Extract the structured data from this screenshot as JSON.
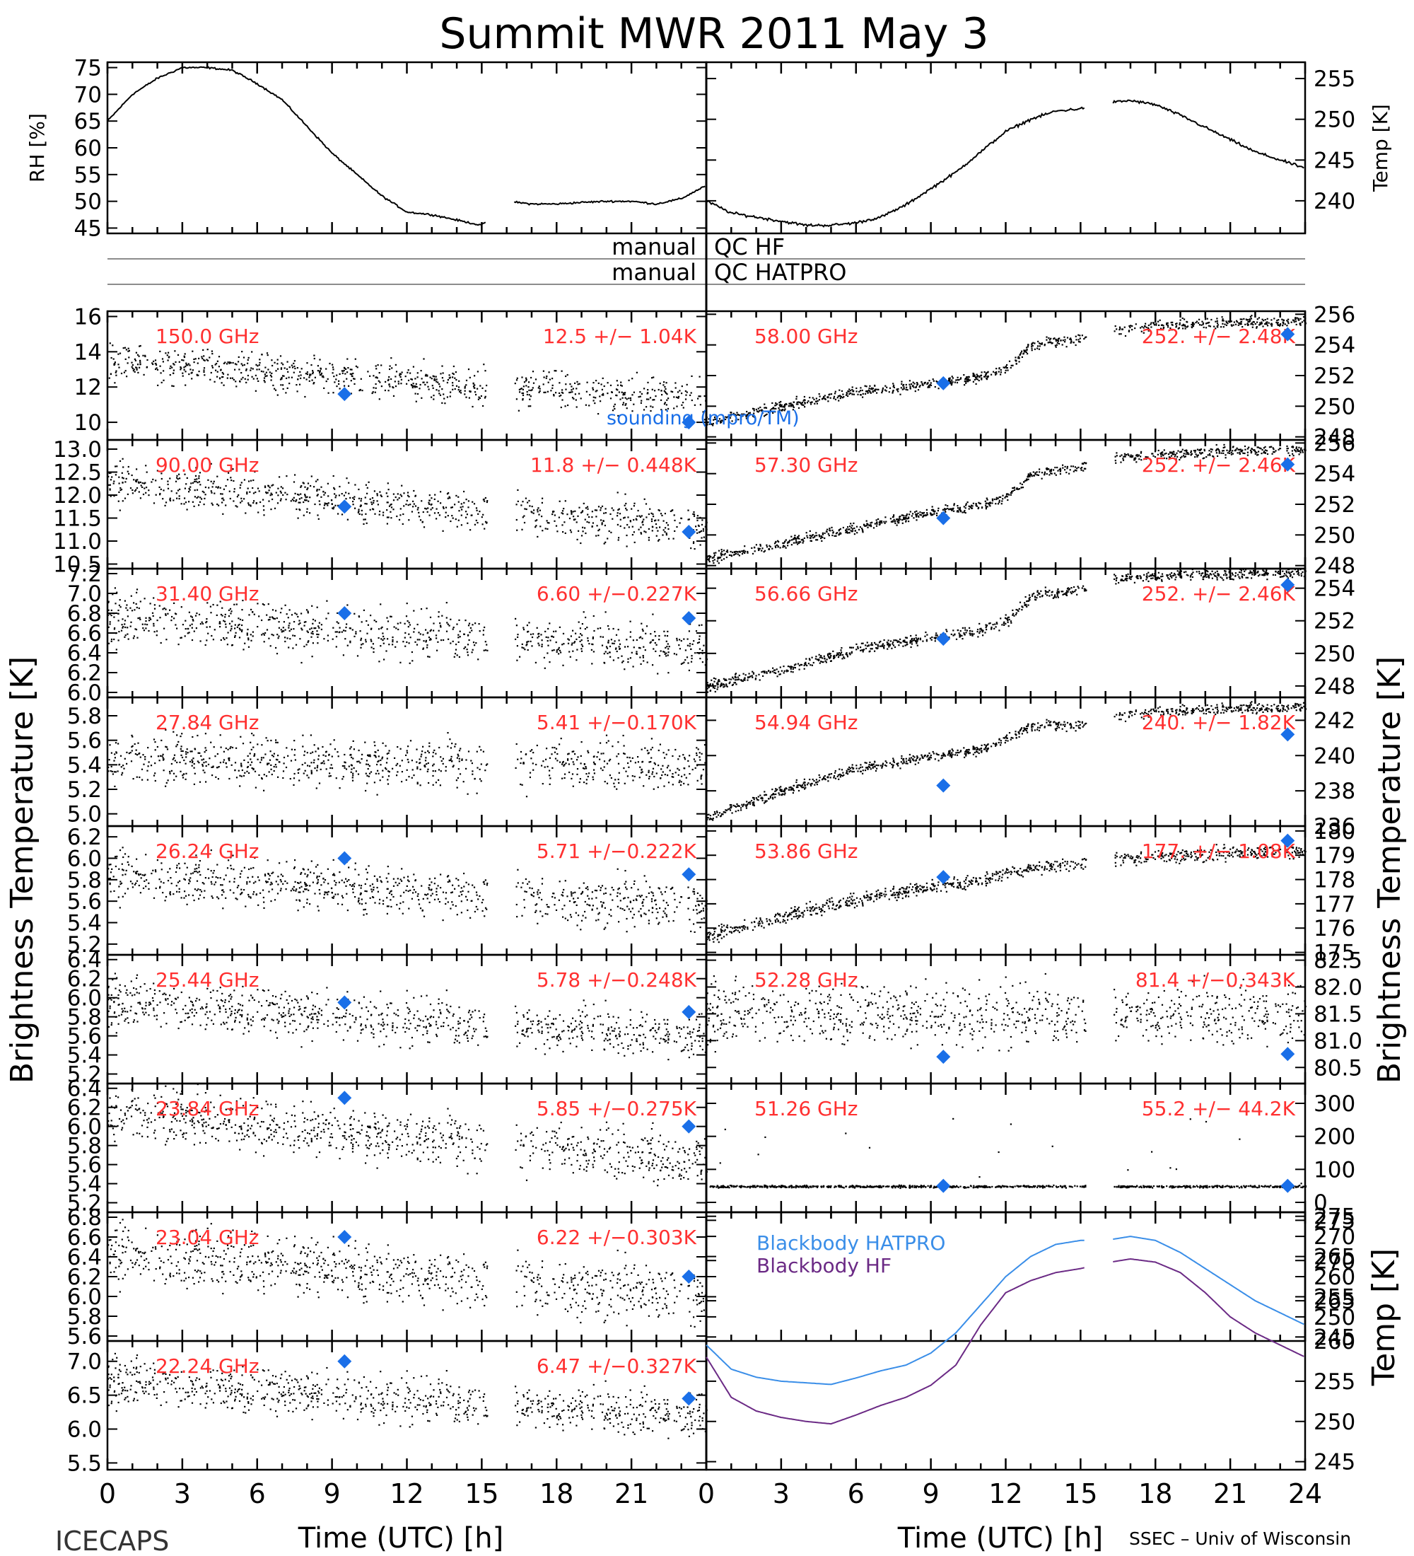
{
  "title": "Summit MWR 2011 May  3",
  "footer_left": "ICECAPS",
  "footer_right": "SSEC – Univ of Wisconsin",
  "x_axis_label": "Time (UTC) [h]",
  "left_ylabel": "Brightness Temperature [K]",
  "right_ylabel": "Brightness Temperature [K]",
  "colors": {
    "series": "#000000",
    "stat_text": "#ff3030",
    "sounding": "#1a6fe8",
    "bb_hatpro": "#3a8ee8",
    "bb_hf": "#6b2a85"
  },
  "qc_bars": [
    {
      "left": "manual",
      "right": "QC HF"
    },
    {
      "left": "manual",
      "right": "QC HATPRO"
    }
  ],
  "sounding_label": "sounding (mpro/TM)",
  "chart_data": [
    {
      "type": "line",
      "id": "rh",
      "ylabel": "RH [%]",
      "xlim": [
        0,
        24
      ],
      "ylim": [
        44,
        76
      ],
      "yticks": [
        45,
        50,
        55,
        60,
        65,
        70,
        75
      ],
      "gap": [
        15.2,
        16.3
      ],
      "x": [
        0,
        1,
        2,
        3,
        4,
        5,
        6,
        7,
        8,
        9,
        10,
        11,
        12,
        13,
        14,
        15,
        16,
        17,
        18,
        19,
        20,
        21,
        22,
        23,
        24
      ],
      "y": [
        65,
        70,
        73,
        75,
        75,
        74.5,
        72,
        69,
        64,
        59,
        55,
        51,
        48,
        47.5,
        46.5,
        45.5,
        50,
        49.5,
        49.5,
        49.8,
        50,
        50,
        49.5,
        50.5,
        53
      ]
    },
    {
      "type": "line",
      "id": "temp",
      "ylabel": "Temp [K]",
      "xlim": [
        0,
        24
      ],
      "ylim": [
        236,
        257
      ],
      "yticks": [
        240,
        245,
        250,
        255
      ],
      "gap": [
        15.2,
        16.3
      ],
      "x": [
        0,
        1,
        2,
        3,
        4,
        5,
        6,
        7,
        8,
        9,
        10,
        11,
        12,
        13,
        14,
        15,
        16,
        17,
        18,
        19,
        20,
        21,
        22,
        23,
        24
      ],
      "y": [
        240,
        238.5,
        238,
        237.5,
        237,
        237,
        237.3,
        238,
        239.5,
        241.5,
        243.5,
        246,
        248.5,
        250,
        251,
        251.3,
        252,
        252.3,
        251.8,
        250.5,
        249,
        247.5,
        246,
        245,
        244
      ]
    },
    {
      "type": "scatter",
      "id": "c150",
      "side": "left",
      "label": "150.0 GHz",
      "stat": "12.5 +/−  1.04K",
      "ylim": [
        9,
        16.3
      ],
      "yticks": [
        10,
        12,
        14,
        16
      ],
      "mean": [
        13.4,
        11.4
      ],
      "noise": 0.9,
      "sound_x": [
        9.5,
        23.3
      ],
      "sound_y": [
        11.6,
        10.0
      ]
    },
    {
      "type": "scatter",
      "id": "c90",
      "side": "left",
      "label": "90.00 GHz",
      "stat": "11.8 +/− 0.448K",
      "ylim": [
        10.4,
        13.2
      ],
      "yticks": [
        10.5,
        11.0,
        11.5,
        12.0,
        12.5,
        13.0
      ],
      "mean": [
        12.3,
        11.3
      ],
      "noise": 0.4,
      "sound_x": [
        9.5,
        23.3
      ],
      "sound_y": [
        11.75,
        11.2
      ]
    },
    {
      "type": "scatter",
      "id": "c3140",
      "side": "left",
      "label": "31.40 GHz",
      "stat": "6.60 +/−0.227K",
      "ylim": [
        5.95,
        7.25
      ],
      "yticks": [
        6.0,
        6.2,
        6.4,
        6.6,
        6.8,
        7.0,
        7.2
      ],
      "mean": [
        6.75,
        6.45
      ],
      "noise": 0.22,
      "sound_x": [
        9.5,
        23.3
      ],
      "sound_y": [
        6.8,
        6.75
      ]
    },
    {
      "type": "scatter",
      "id": "c2784",
      "side": "left",
      "label": "27.84 GHz",
      "stat": "5.41 +/−0.170K",
      "ylim": [
        4.9,
        5.95
      ],
      "yticks": [
        5.0,
        5.2,
        5.4,
        5.6,
        5.8
      ],
      "mean": [
        5.45,
        5.4
      ],
      "noise": 0.18,
      "sound_x": [],
      "sound_y": []
    },
    {
      "type": "scatter",
      "id": "c2624",
      "side": "left",
      "label": "26.24 GHz",
      "stat": "5.71 +/−0.222K",
      "ylim": [
        5.1,
        6.3
      ],
      "yticks": [
        5.2,
        5.4,
        5.6,
        5.8,
        6.0,
        6.2
      ],
      "mean": [
        5.85,
        5.55
      ],
      "noise": 0.2,
      "sound_x": [
        9.5,
        23.3
      ],
      "sound_y": [
        6.0,
        5.85
      ]
    },
    {
      "type": "scatter",
      "id": "c2544",
      "side": "left",
      "label": "25.44 GHz",
      "stat": "5.78 +/−0.248K",
      "ylim": [
        5.1,
        6.45
      ],
      "yticks": [
        5.2,
        5.4,
        5.6,
        5.8,
        6.0,
        6.2,
        6.4
      ],
      "mean": [
        5.95,
        5.6
      ],
      "noise": 0.22,
      "sound_x": [
        9.5,
        23.3
      ],
      "sound_y": [
        5.95,
        5.85
      ]
    },
    {
      "type": "scatter",
      "id": "c2384",
      "side": "left",
      "label": "23.84 GHz",
      "stat": "5.85 +/−0.275K",
      "ylim": [
        5.1,
        6.45
      ],
      "yticks": [
        5.2,
        5.4,
        5.6,
        5.8,
        6.0,
        6.2,
        6.4
      ],
      "mean": [
        6.15,
        5.65
      ],
      "noise": 0.24,
      "sound_x": [
        9.5,
        23.3
      ],
      "sound_y": [
        6.3,
        6.0
      ]
    },
    {
      "type": "scatter",
      "id": "c2304",
      "side": "left",
      "label": "23.04 GHz",
      "stat": "6.22 +/−0.303K",
      "ylim": [
        5.55,
        6.85
      ],
      "yticks": [
        5.6,
        5.8,
        6.0,
        6.2,
        6.4,
        6.6,
        6.8
      ],
      "mean": [
        6.45,
        6.0
      ],
      "noise": 0.26,
      "sound_x": [
        9.5,
        23.3
      ],
      "sound_y": [
        6.6,
        6.2
      ]
    },
    {
      "type": "scatter",
      "id": "c2224",
      "side": "left",
      "label": "22.24 GHz",
      "stat": "6.47 +/−0.327K",
      "ylim": [
        5.4,
        7.3
      ],
      "yticks": [
        5.5,
        6.0,
        6.5,
        7.0
      ],
      "mean": [
        6.7,
        6.2
      ],
      "noise": 0.3,
      "sound_x": [
        9.5,
        23.3
      ],
      "sound_y": [
        7.0,
        6.45
      ]
    },
    {
      "type": "scatter",
      "id": "c5800",
      "side": "right",
      "label": "58.00 GHz",
      "stat": "252. +/−  2.48K",
      "ylim": [
        247.8,
        256.2
      ],
      "yticks": [
        248,
        250,
        252,
        254,
        256
      ],
      "trend_x": [
        0,
        3,
        6,
        9,
        11,
        12,
        13,
        15,
        16.3,
        18,
        21,
        24
      ],
      "trend_y": [
        249,
        250,
        251,
        251.5,
        252,
        252.5,
        254,
        254.5,
        255,
        255.3,
        255.5,
        255.6
      ],
      "noise": 0.3,
      "sound_x": [
        9.5,
        23.3
      ],
      "sound_y": [
        251.5,
        254.7
      ]
    },
    {
      "type": "scatter",
      "id": "c5730",
      "side": "right",
      "label": "57.30 GHz",
      "stat": "252. +/−  2.46K",
      "ylim": [
        247.8,
        256.2
      ],
      "yticks": [
        248,
        250,
        252,
        254,
        256
      ],
      "trend_x": [
        0,
        3,
        6,
        9,
        11,
        12,
        13,
        15,
        16.3,
        18,
        21,
        24
      ],
      "trend_y": [
        248.5,
        249.5,
        250.5,
        251.5,
        252,
        252.5,
        254,
        254.5,
        255,
        255.3,
        255.5,
        255.6
      ],
      "noise": 0.3,
      "sound_x": [
        9.5,
        23.3
      ],
      "sound_y": [
        251.1,
        254.6
      ]
    },
    {
      "type": "scatter",
      "id": "c5666",
      "side": "right",
      "label": "56.66 GHz",
      "stat": "252. +/−  2.46K",
      "ylim": [
        247.3,
        255.2
      ],
      "yticks": [
        248,
        250,
        252,
        254
      ],
      "trend_x": [
        0,
        3,
        6,
        9,
        11,
        12,
        13,
        15,
        16.3,
        18,
        21,
        24
      ],
      "trend_y": [
        248,
        249,
        250.3,
        251,
        251.5,
        252,
        253.5,
        254,
        254.6,
        254.8,
        254.9,
        255
      ],
      "noise": 0.3,
      "sound_x": [
        9.5,
        23.3
      ],
      "sound_y": [
        250.9,
        254.2
      ]
    },
    {
      "type": "scatter",
      "id": "c5494",
      "side": "right",
      "label": "54.94 GHz",
      "stat": "240. +/−  1.82K",
      "ylim": [
        236,
        243.3
      ],
      "yticks": [
        236,
        238,
        240,
        242
      ],
      "trend_x": [
        0,
        3,
        6,
        9,
        11,
        12,
        13,
        15,
        16.3,
        18,
        21,
        24
      ],
      "trend_y": [
        236.5,
        238,
        239.3,
        240,
        240.4,
        241,
        241.7,
        241.8,
        242.3,
        242.5,
        242.7,
        242.8
      ],
      "noise": 0.25,
      "sound_x": [
        9.5,
        23.3
      ],
      "sound_y": [
        238.3,
        241.2
      ]
    },
    {
      "type": "scatter",
      "id": "c5386",
      "side": "right",
      "label": "53.86 GHz",
      "stat": "177. +/− 1.08K",
      "ylim": [
        174.9,
        180.2
      ],
      "yticks": [
        175,
        176,
        177,
        178,
        179,
        180
      ],
      "trend_x": [
        0,
        3,
        6,
        9,
        11,
        12,
        13,
        15,
        16.3,
        18,
        21,
        24
      ],
      "trend_y": [
        175.7,
        176.5,
        177.2,
        177.7,
        178,
        178.3,
        178.5,
        178.7,
        178.8,
        179,
        179.1,
        179.2
      ],
      "noise": 0.25,
      "sound_x": [
        9.5,
        23.3
      ],
      "sound_y": [
        178.1,
        179.6
      ]
    },
    {
      "type": "scatter",
      "id": "c5228",
      "side": "right",
      "label": "52.28 GHz",
      "stat": "81.4 +/−0.343K",
      "ylim": [
        80.2,
        82.6
      ],
      "yticks": [
        80.5,
        81.0,
        81.5,
        82.0,
        82.5
      ],
      "trend_x": [
        0,
        24
      ],
      "trend_y": [
        81.5,
        81.5
      ],
      "noise": 0.5,
      "sound_x": [
        9.5,
        23.3
      ],
      "sound_y": [
        80.7,
        80.75
      ]
    },
    {
      "type": "scatter",
      "id": "c5126",
      "side": "right",
      "label": "51.26 GHz",
      "stat": "55.2 +/−  44.2K",
      "ylim": [
        -30,
        360
      ],
      "yticks": [
        0,
        100,
        200,
        300
      ],
      "trend_x": [
        0,
        24
      ],
      "trend_y": [
        50,
        50
      ],
      "noise": 3,
      "sound_x": [
        9.5,
        23.3
      ],
      "sound_y": [
        50,
        50
      ]
    },
    {
      "type": "line",
      "id": "bb",
      "side": "right",
      "ylabel": "Temp [K]",
      "ylim": [
        244,
        276
      ],
      "yticks": [
        245,
        250,
        255,
        260,
        265,
        270,
        275
      ],
      "gap": [
        15.2,
        16.3
      ],
      "x": [
        0,
        1,
        2,
        3,
        4,
        5,
        6,
        7,
        8,
        9,
        10,
        11,
        12,
        13,
        14,
        15,
        16,
        17,
        18,
        19,
        20,
        21,
        22,
        23,
        24
      ],
      "series": [
        {
          "name": "Blackbody HATPRO",
          "values": [
            259.5,
            256.5,
            255.5,
            255,
            254.8,
            254.6,
            255.4,
            256.3,
            257,
            258.5,
            261,
            264.5,
            268,
            270.5,
            272,
            272.5,
            272.5,
            273,
            272.5,
            271,
            269,
            267,
            265,
            263.5,
            262
          ]
        },
        {
          "name": "Blackbody HF",
          "values": [
            258,
            253,
            251.3,
            250.5,
            250,
            249.7,
            250.8,
            252,
            253,
            254.5,
            257,
            262,
            266,
            267.5,
            268.5,
            269,
            269.7,
            270.2,
            269.8,
            268.5,
            266,
            263,
            261,
            259.5,
            258
          ]
        }
      ]
    }
  ],
  "xticks_hours": [
    0,
    3,
    6,
    9,
    12,
    15,
    18,
    21,
    24
  ]
}
